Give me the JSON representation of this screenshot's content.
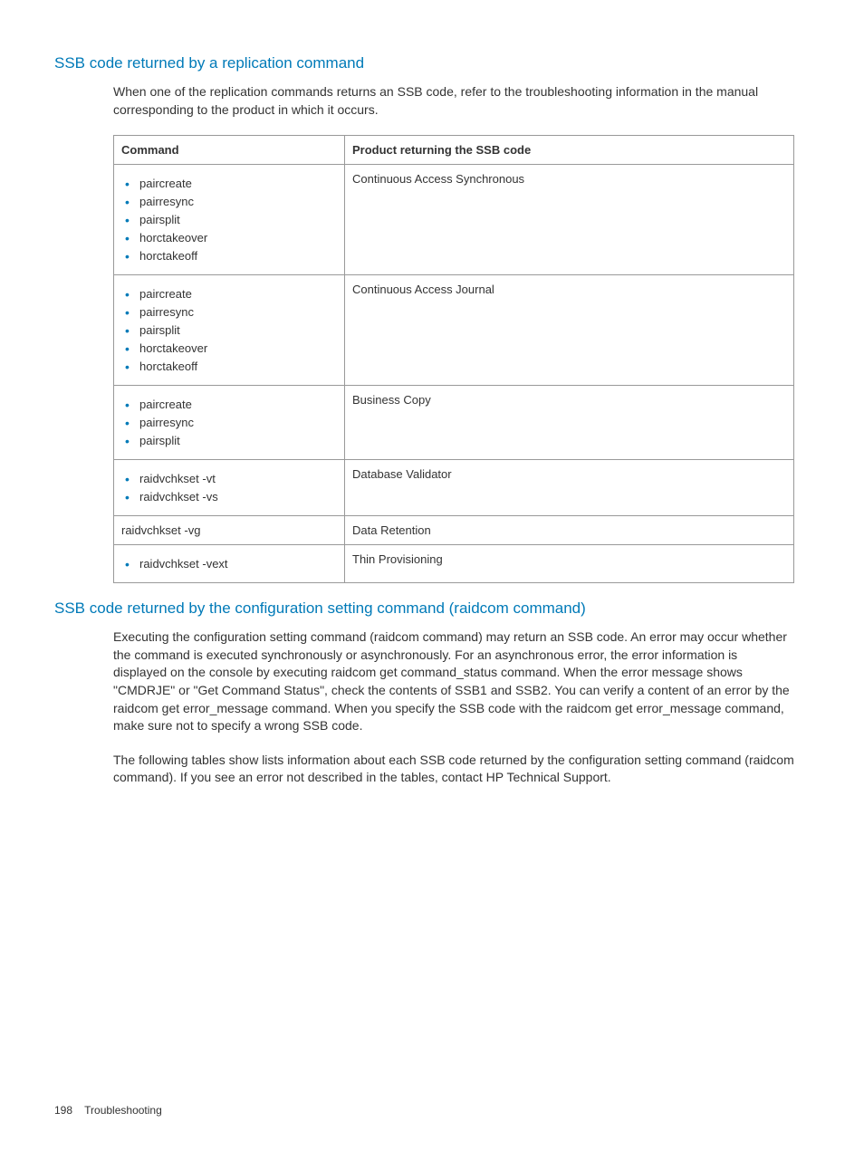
{
  "heading1": "SSB code returned by a replication command",
  "para1": "When one of the replication commands returns an SSB code, refer to the troubleshooting information in the manual corresponding to the product in which it occurs.",
  "table": {
    "header": {
      "col1": "Command",
      "col2": "Product returning the SSB code"
    },
    "rows": [
      {
        "commands": [
          "paircreate",
          "pairresync",
          "pairsplit",
          "horctakeover",
          "horctakeoff"
        ],
        "product": "Continuous Access Synchronous",
        "bulleted": true
      },
      {
        "commands": [
          "paircreate",
          "pairresync",
          "pairsplit",
          "horctakeover",
          "horctakeoff"
        ],
        "product": "Continuous Access Journal",
        "bulleted": true
      },
      {
        "commands": [
          "paircreate",
          "pairresync",
          "pairsplit"
        ],
        "product": "Business Copy",
        "bulleted": true
      },
      {
        "commands": [
          "raidvchkset -vt",
          "raidvchkset -vs"
        ],
        "product": "Database Validator",
        "bulleted": true
      },
      {
        "plain": "raidvchkset -vg",
        "product": "Data Retention",
        "bulleted": false
      },
      {
        "commands": [
          "raidvchkset -vext"
        ],
        "product": "Thin Provisioning",
        "bulleted": true
      }
    ]
  },
  "heading2": "SSB code returned by the configuration setting command (raidcom command)",
  "para2": "Executing the configuration setting command (raidcom command) may return an SSB code. An error may occur whether the command is executed synchronously or asynchronously. For an asynchronous error, the error information is displayed on the console by executing raidcom get command_status command. When the error message shows \"CMDRJE\" or \"Get Command Status\", check the contents of SSB1 and SSB2. You can verify a content of an error by the raidcom get error_message command. When you specify the SSB code with the raidcom get error_message command, make sure not to specify a wrong SSB code.",
  "para3": "The following tables show lists information about each SSB code returned by the configuration setting command (raidcom command). If you see an error not described in the tables, contact HP Technical Support.",
  "footer": {
    "page": "198",
    "section": "Troubleshooting"
  },
  "colors": {
    "heading": "#007ab8",
    "bullet": "#007ab8",
    "text": "#333333",
    "border": "#999999",
    "background": "#ffffff"
  },
  "typography": {
    "heading_fontsize": 17,
    "body_fontsize": 14,
    "table_fontsize": 13,
    "footer_fontsize": 12
  }
}
